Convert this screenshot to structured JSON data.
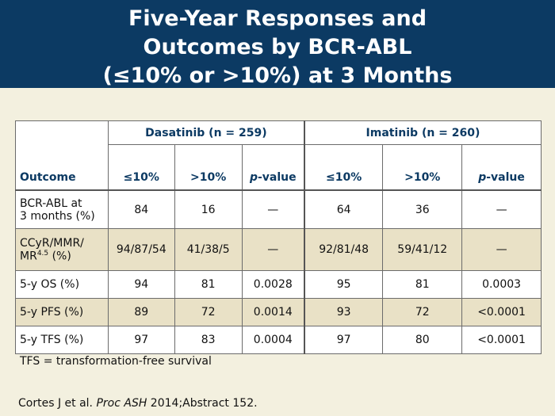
{
  "title": {
    "line1": "Five-Year Responses and",
    "line2": "Outcomes by BCR-ABL",
    "line3": "(≤10% or >10%) at 3 Months"
  },
  "table": {
    "outcome_header": "Outcome",
    "groups": [
      "Dasatinib (n = 259)",
      "Imatinib (n = 260)"
    ],
    "subheaders": {
      "le10": "≤10%",
      "gt10": ">10%",
      "p_italic": "p",
      "p_rest": "-value"
    },
    "rows": [
      {
        "label_line1": "BCR-ABL at",
        "label_line2": "3 months (%)",
        "cells": [
          "84",
          "16",
          "—",
          "64",
          "36",
          "—"
        ]
      },
      {
        "label_line1": "CCyR/MMR/",
        "label_line2_pre": "MR",
        "label_line2_sup": "4.5",
        "label_line2_post": " (%)",
        "cells": [
          "94/87/54",
          "41/38/5",
          "—",
          "92/81/48",
          "59/41/12",
          "—"
        ]
      },
      {
        "label": "5-y OS (%)",
        "cells": [
          "94",
          "81",
          "0.0028",
          "95",
          "81",
          "0.0003"
        ]
      },
      {
        "label": "5-y PFS (%)",
        "cells": [
          "89",
          "72",
          "0.0014",
          "93",
          "72",
          "<0.0001"
        ]
      },
      {
        "label": "5-y TFS (%)",
        "cells": [
          "97",
          "83",
          "0.0004",
          "97",
          "80",
          "<0.0001"
        ]
      }
    ]
  },
  "footnote": "TFS = transformation-free survival",
  "citation": {
    "pre": "Cortes J et al. ",
    "journal": "Proc ASH",
    "post": " 2014;Abstract 152."
  }
}
